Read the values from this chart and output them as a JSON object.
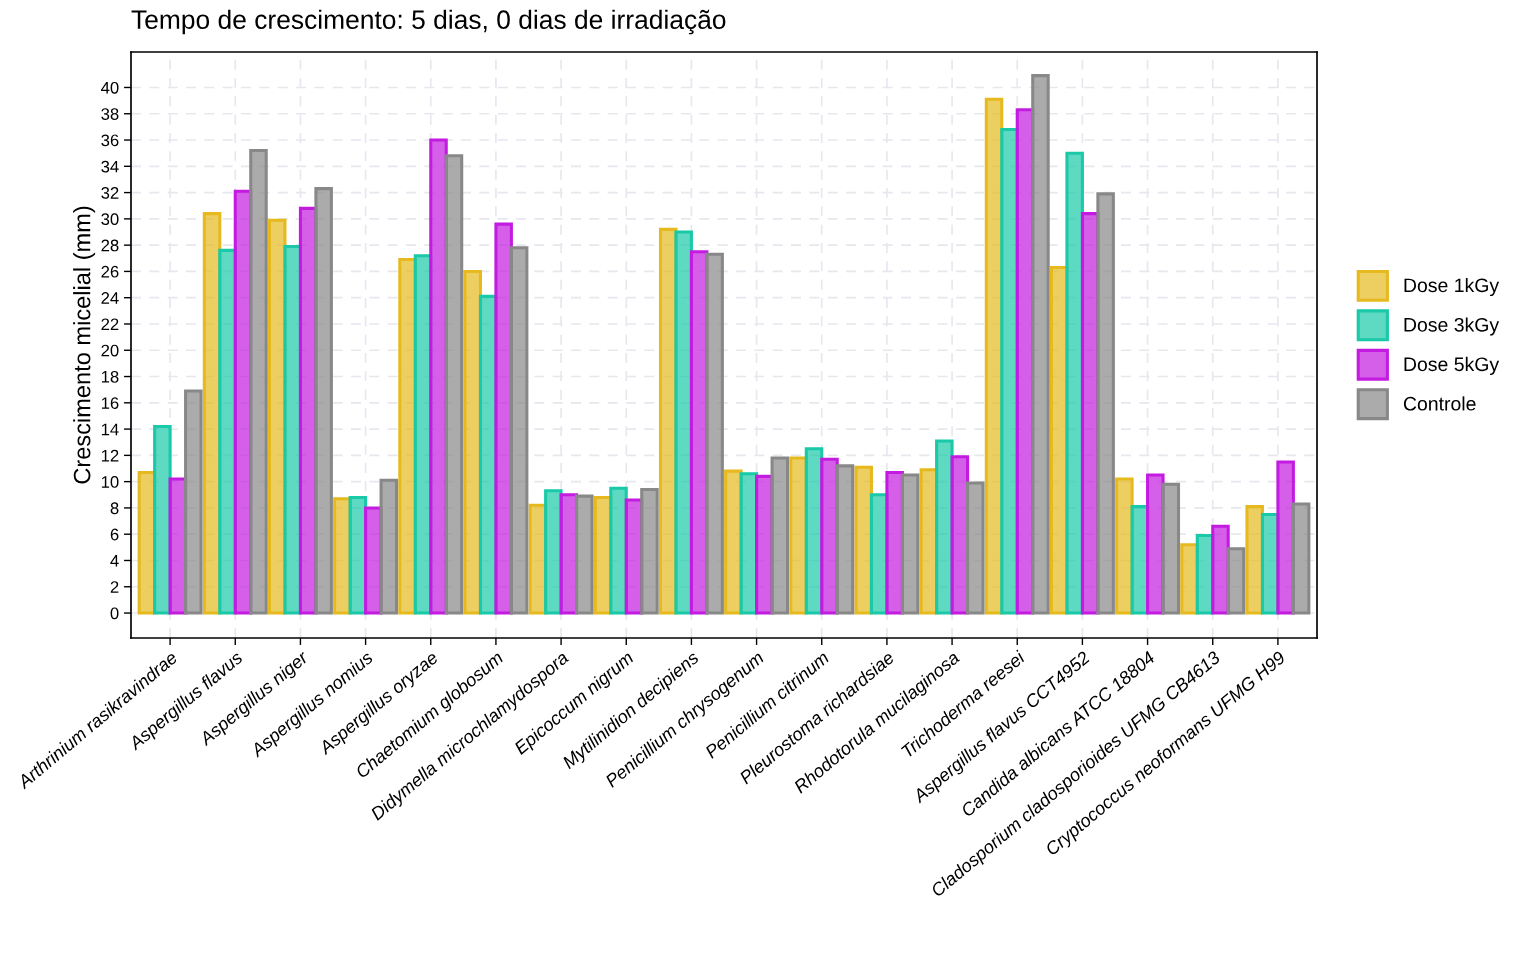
{
  "chart_data": {
    "type": "bar",
    "title": "Tempo de crescimento: 5 dias, 0 dias de irradiação",
    "ylabel": "Crescimento micelial (mm)",
    "categories": [
      "Arthrinium rasikravindrae",
      "Aspergillus flavus",
      "Aspergillus niger",
      "Aspergillus nomius",
      "Aspergillus oryzae",
      "Chaetomium globosum",
      "Didymella microchlamydospora",
      "Epicoccum nigrum",
      "Mytilinidion decipiens",
      "Penicillium chrysogenum",
      "Penicillium citrinum",
      "Pleurostoma richardsiae",
      "Rhodotorula mucilaginosa",
      "Trichoderma reesei",
      "Aspergillus flavus CCT4952",
      "Candida albicans ATCC 18804",
      "Cladosporium cladosporioides UFMG CB4613",
      "Cryptococcus neoformans UFMG H99"
    ],
    "series": [
      {
        "name": "Dose 1kGy",
        "color": "#e6b91e",
        "values": [
          10.7,
          30.4,
          29.9,
          8.7,
          26.9,
          26.0,
          8.2,
          8.8,
          29.2,
          10.8,
          11.8,
          11.1,
          10.9,
          39.1,
          26.3,
          10.2,
          5.2,
          8.1
        ]
      },
      {
        "name": "Dose 3kGy",
        "color": "#19c9a8",
        "values": [
          14.2,
          27.6,
          27.9,
          8.8,
          27.2,
          24.1,
          9.3,
          9.5,
          29.0,
          10.6,
          12.5,
          9.0,
          13.1,
          36.8,
          35.0,
          8.1,
          5.9,
          7.5
        ]
      },
      {
        "name": "Dose 5kGy",
        "color": "#c31be0",
        "values": [
          10.2,
          32.1,
          30.8,
          8.0,
          36.0,
          29.6,
          9.0,
          8.6,
          27.5,
          10.4,
          11.7,
          10.7,
          11.9,
          38.3,
          30.4,
          10.5,
          6.6,
          11.5
        ]
      },
      {
        "name": "Controle",
        "color": "#888888",
        "values": [
          16.9,
          35.2,
          32.3,
          10.1,
          34.8,
          27.8,
          8.9,
          9.4,
          27.3,
          11.8,
          11.2,
          10.5,
          9.9,
          40.9,
          31.9,
          9.8,
          4.9,
          8.3
        ]
      }
    ],
    "ylim": [
      -1.9,
      42.7
    ],
    "yticks": [
      0,
      2,
      4,
      6,
      8,
      10,
      12,
      14,
      16,
      18,
      20,
      22,
      24,
      26,
      28,
      30,
      32,
      34,
      36,
      38,
      40
    ],
    "grid": true,
    "legend": "right"
  }
}
